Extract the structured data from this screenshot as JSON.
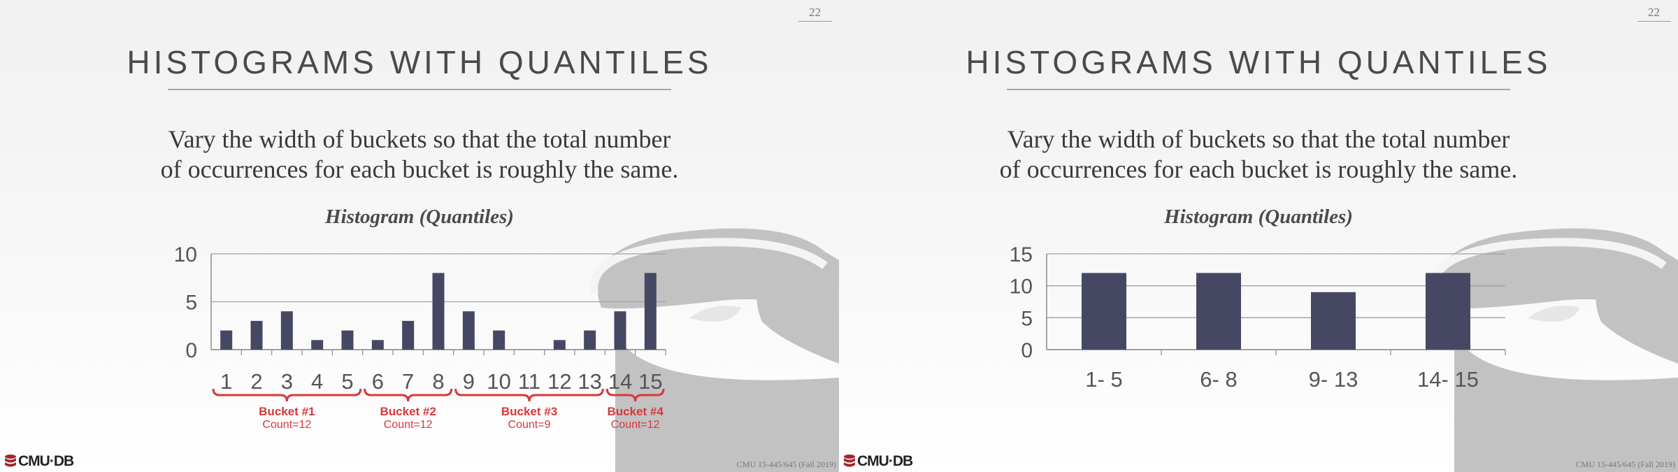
{
  "slides": [
    {
      "page_number": "22",
      "title": "HISTOGRAMS WITH QUANTILES",
      "body_lines": [
        "Vary the width of buckets so that the total number",
        "of occurrences for each bucket is roughly the same."
      ],
      "chart_title": "Histogram (Quantiles)",
      "footer_logo": "CMU·DB",
      "footer_course": "CMU 15-445/645 (Fall 2019)",
      "colors": {
        "bar": "#464863",
        "bracket": "#d9373a",
        "watermark": "#c2c2c2"
      }
    },
    {
      "page_number": "22",
      "title": "HISTOGRAMS WITH QUANTILES",
      "body_lines": [
        "Vary the width of buckets so that the total number",
        "of occurrences for each bucket is roughly the same."
      ],
      "chart_title": "Histogram (Quantiles)",
      "footer_logo": "CMU·DB",
      "footer_course": "CMU 15-445/645 (Fall 2019)",
      "colors": {
        "bar": "#464863",
        "watermark": "#c2c2c2"
      }
    }
  ],
  "chart_data": [
    {
      "type": "bar",
      "title": "Histogram (Quantiles)",
      "categories": [
        "1",
        "2",
        "3",
        "4",
        "5",
        "6",
        "7",
        "8",
        "9",
        "10",
        "11",
        "12",
        "13",
        "14",
        "15"
      ],
      "values": [
        2,
        3,
        4,
        1,
        2,
        1,
        3,
        8,
        4,
        2,
        0,
        1,
        2,
        4,
        8
      ],
      "ylim": [
        0,
        10
      ],
      "yticks": [
        "0",
        "5",
        "10"
      ],
      "grid": true,
      "annotations": [
        {
          "label": "Bucket #1",
          "count": "Count=12",
          "from": "1",
          "to": "5"
        },
        {
          "label": "Bucket #2",
          "count": "Count=12",
          "from": "6",
          "to": "8"
        },
        {
          "label": "Bucket #3",
          "count": "Count=9",
          "from": "9",
          "to": "13"
        },
        {
          "label": "Bucket #4",
          "count": "Count=12",
          "from": "14",
          "to": "15"
        }
      ]
    },
    {
      "type": "bar",
      "title": "Histogram (Quantiles)",
      "categories": [
        "1- 5",
        "6- 8",
        "9- 13",
        "14- 15"
      ],
      "values": [
        12,
        12,
        9,
        12
      ],
      "ylim": [
        0,
        15
      ],
      "yticks": [
        "0",
        "5",
        "10",
        "15"
      ],
      "grid": true
    }
  ]
}
